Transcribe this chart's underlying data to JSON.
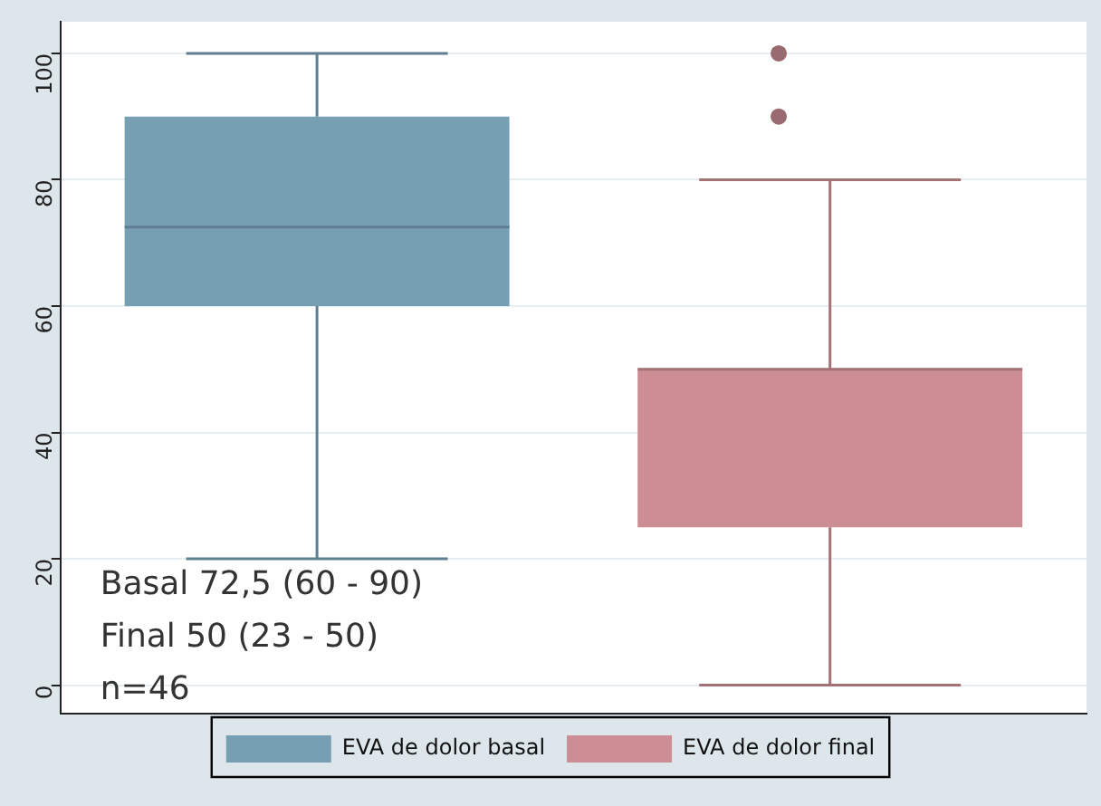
{
  "chart_data": {
    "type": "box",
    "categories": [
      null,
      null
    ],
    "ylim": [
      -4.5,
      105
    ],
    "yticks": [
      0,
      20,
      40,
      60,
      80,
      100
    ],
    "grid": "y",
    "legend": "bottom",
    "series": [
      {
        "name": "EVA de dolor basal",
        "color": "#779fb4",
        "boxes": [
          {
            "low": 20,
            "q1": 60,
            "median": 72.5,
            "q3": 90,
            "high": 100
          },
          null
        ]
      },
      {
        "name": "EVA de dolor final",
        "color": "#cc8d94",
        "boxes": [
          null,
          {
            "low": 0,
            "q1": 25,
            "median": 50,
            "q3": 50,
            "high": 80,
            "outliers": [
              90,
              100
            ]
          }
        ]
      }
    ],
    "annotations": [
      "Basal 72,5 (60 - 90)",
      "Final 50 (23 - 50)",
      "n=46"
    ]
  }
}
